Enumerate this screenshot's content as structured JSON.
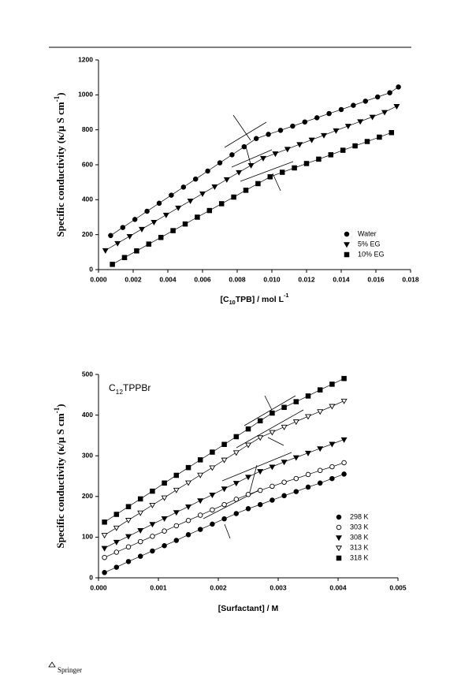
{
  "chart_data": [
    {
      "type": "scatter",
      "xlabel": [
        "[C",
        "10",
        "TPB] / mol L",
        "-1"
      ],
      "ylabel": [
        "Specific  conductivity (κ/μ S cm",
        "-1",
        ")"
      ],
      "xlim": [
        0,
        0.018
      ],
      "ylim": [
        0,
        1200
      ],
      "xticks": [
        {
          "value": 0,
          "label": "0.000"
        },
        {
          "value": 0.002,
          "label": "0.002"
        },
        {
          "value": 0.004,
          "label": "0.004"
        },
        {
          "value": 0.006,
          "label": "0.006"
        },
        {
          "value": 0.008,
          "label": "0.008"
        },
        {
          "value": 0.01,
          "label": "0.010"
        },
        {
          "value": 0.012,
          "label": "0.012"
        },
        {
          "value": 0.014,
          "label": "0.014"
        },
        {
          "value": 0.016,
          "label": "0.016"
        },
        {
          "value": 0.018,
          "label": "0.018"
        }
      ],
      "yticks": [
        0,
        200,
        400,
        600,
        800,
        1000,
        1200
      ],
      "legend": "lower right",
      "series": [
        {
          "name": "Water",
          "color": "#000000",
          "marker": "circle",
          "filled": true,
          "x": [
            0.0007,
            0.0014,
            0.0021,
            0.0028,
            0.0035,
            0.0042,
            0.0049,
            0.0056,
            0.0063,
            0.007,
            0.0077,
            0.0084,
            0.0091,
            0.0098,
            0.0105,
            0.0112,
            0.0119,
            0.0126,
            0.0133,
            0.014,
            0.0147,
            0.0154,
            0.0161,
            0.0168,
            0.0173
          ],
          "values": [
            195,
            241,
            287,
            334,
            380,
            426,
            472,
            518,
            564,
            611,
            657,
            703,
            750,
            774,
            797,
            821,
            845,
            869,
            893,
            916,
            940,
            964,
            988,
            1012,
            1045
          ]
        },
        {
          "name": "5% EG",
          "color": "#000000",
          "marker": "triangle-down",
          "filled": true,
          "x": [
            0.0004,
            0.0011,
            0.0018,
            0.0025,
            0.0032,
            0.0039,
            0.0046,
            0.0053,
            0.006,
            0.0067,
            0.0074,
            0.0081,
            0.0088,
            0.0095,
            0.0102,
            0.0109,
            0.0116,
            0.0123,
            0.013,
            0.0137,
            0.0144,
            0.0151,
            0.0158,
            0.0165,
            0.0172
          ],
          "values": [
            110,
            151,
            191,
            232,
            272,
            313,
            354,
            394,
            435,
            475,
            516,
            557,
            597,
            638,
            664,
            690,
            717,
            743,
            769,
            796,
            822,
            848,
            874,
            901,
            935
          ]
        },
        {
          "name": "10% EG",
          "color": "#000000",
          "marker": "square",
          "filled": true,
          "x": [
            0.0008,
            0.0015,
            0.0022,
            0.0029,
            0.0036,
            0.0043,
            0.005,
            0.0057,
            0.0064,
            0.0071,
            0.0078,
            0.0085,
            0.0092,
            0.0099,
            0.0106,
            0.0113,
            0.012,
            0.0127,
            0.0134,
            0.0141,
            0.0148,
            0.0155,
            0.0162,
            0.0169
          ],
          "values": [
            30,
            69,
            107,
            146,
            184,
            223,
            261,
            300,
            338,
            377,
            415,
            454,
            492,
            531,
            557,
            582,
            607,
            632,
            657,
            683,
            708,
            733,
            758,
            784
          ]
        }
      ]
    },
    {
      "type": "scatter",
      "annotation": [
        "C",
        "12",
        "TPPBr"
      ],
      "xlabel": [
        "[Surfactant] / M"
      ],
      "ylabel": [
        "Specific  conductivity (κ/μ S cm",
        "-1",
        ")"
      ],
      "xlim": [
        0,
        0.005
      ],
      "ylim": [
        0,
        500
      ],
      "xticks": [
        {
          "value": 0,
          "label": "0.000"
        },
        {
          "value": 0.001,
          "label": "0.001"
        },
        {
          "value": 0.002,
          "label": "0.002"
        },
        {
          "value": 0.003,
          "label": "0.003"
        },
        {
          "value": 0.004,
          "label": "0.004"
        },
        {
          "value": 0.005,
          "label": "0.005"
        }
      ],
      "yticks": [
        0,
        100,
        200,
        300,
        400,
        500
      ],
      "legend": "lower right",
      "series": [
        {
          "name": "298 K",
          "color": "#000000",
          "marker": "circle",
          "filled": true,
          "x": [
            0.0001,
            0.0003,
            0.0005,
            0.0007,
            0.0009,
            0.0011,
            0.0013,
            0.0015,
            0.0017,
            0.0019,
            0.0021,
            0.0023,
            0.0025,
            0.0027,
            0.0029,
            0.0031,
            0.0033,
            0.0035,
            0.0037,
            0.0039,
            0.0041
          ],
          "values": [
            13,
            26,
            40,
            53,
            66,
            79,
            92,
            106,
            119,
            132,
            145,
            158,
            170,
            180,
            191,
            202,
            212,
            223,
            233,
            244,
            255
          ]
        },
        {
          "name": "303 K",
          "color": "#000000",
          "marker": "circle",
          "filled": false,
          "x": [
            0.0001,
            0.0003,
            0.0005,
            0.0007,
            0.0009,
            0.0011,
            0.0013,
            0.0015,
            0.0017,
            0.0019,
            0.0021,
            0.0023,
            0.0025,
            0.0027,
            0.0029,
            0.0031,
            0.0033,
            0.0035,
            0.0037,
            0.0039,
            0.0041
          ],
          "values": [
            50,
            63,
            76,
            89,
            102,
            115,
            128,
            141,
            154,
            167,
            180,
            193,
            205,
            215,
            225,
            235,
            244,
            254,
            264,
            273,
            283
          ]
        },
        {
          "name": "308 K",
          "color": "#000000",
          "marker": "triangle-down",
          "filled": true,
          "x": [
            0.0001,
            0.0003,
            0.0005,
            0.0007,
            0.0009,
            0.0011,
            0.0013,
            0.0015,
            0.0017,
            0.0019,
            0.0021,
            0.0023,
            0.0025,
            0.0027,
            0.0029,
            0.0031,
            0.0033,
            0.0035,
            0.0037,
            0.0039,
            0.0041
          ],
          "values": [
            73,
            88,
            102,
            117,
            132,
            146,
            161,
            175,
            190,
            204,
            219,
            233,
            248,
            262,
            273,
            285,
            296,
            307,
            318,
            329,
            340
          ]
        },
        {
          "name": "313 K",
          "color": "#000000",
          "marker": "triangle-down",
          "filled": false,
          "x": [
            0.0001,
            0.0003,
            0.0005,
            0.0007,
            0.0009,
            0.0011,
            0.0013,
            0.0015,
            0.0017,
            0.0019,
            0.0021,
            0.0023,
            0.0025,
            0.0027,
            0.0029,
            0.0031,
            0.0033,
            0.0035,
            0.0037,
            0.0039,
            0.0041
          ],
          "values": [
            105,
            123,
            142,
            160,
            179,
            197,
            216,
            234,
            253,
            271,
            290,
            308,
            327,
            345,
            358,
            371,
            384,
            397,
            409,
            422,
            435
          ]
        },
        {
          "name": "318 K",
          "color": "#000000",
          "marker": "square",
          "filled": true,
          "x": [
            0.0001,
            0.0003,
            0.0005,
            0.0007,
            0.0009,
            0.0011,
            0.0013,
            0.0015,
            0.0017,
            0.0019,
            0.0021,
            0.0023,
            0.0025,
            0.0027,
            0.0029,
            0.0031,
            0.0033,
            0.0035,
            0.0037,
            0.0039,
            0.0041
          ],
          "values": [
            137,
            156,
            175,
            194,
            213,
            233,
            252,
            271,
            290,
            309,
            328,
            347,
            366,
            386,
            405,
            419,
            433,
            447,
            462,
            476,
            490
          ]
        }
      ]
    }
  ],
  "footer": {
    "publisher": "Springer"
  }
}
